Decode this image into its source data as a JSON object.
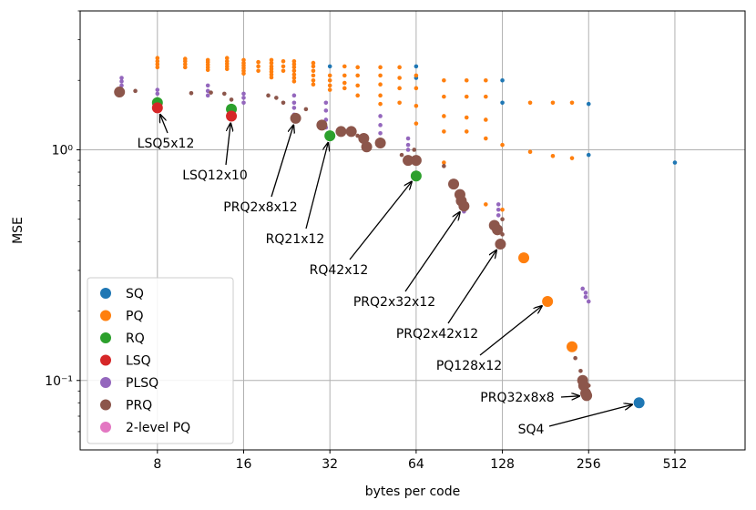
{
  "chart_data": {
    "type": "scatter",
    "title": "",
    "xlabel": "bytes per code",
    "ylabel": "MSE",
    "xscale": "log2",
    "yscale": "log10",
    "xlim": [
      4.3,
      900
    ],
    "ylim": [
      0.05,
      4.0
    ],
    "xticks": [
      8,
      16,
      32,
      64,
      128,
      256,
      512
    ],
    "xtick_labels": [
      "8",
      "16",
      "32",
      "64",
      "128",
      "256",
      "512"
    ],
    "yticks": [
      0.1,
      1.0
    ],
    "ytick_labels": [
      "10⁻¹",
      "10⁰"
    ],
    "grid": true,
    "legend_location": "lower-left",
    "legend": [
      {
        "label": "SQ",
        "color": "#1f77b4"
      },
      {
        "label": "PQ",
        "color": "#ff7f0e"
      },
      {
        "label": "RQ",
        "color": "#2ca02c"
      },
      {
        "label": "LSQ",
        "color": "#d62728"
      },
      {
        "label": "PLSQ",
        "color": "#9467bd"
      },
      {
        "label": "PRQ",
        "color": "#8c564b"
      },
      {
        "label": "2-level PQ",
        "color": "#e377c2"
      }
    ],
    "series": [
      {
        "name": "SQ",
        "color": "#1f77b4",
        "points": [
          [
            32,
            2.3
          ],
          [
            64,
            2.3
          ],
          [
            64,
            2.05
          ],
          [
            128,
            2.0
          ],
          [
            128,
            1.6
          ],
          [
            256,
            1.58
          ],
          [
            256,
            0.95
          ],
          [
            512,
            0.88
          ],
          [
            384,
            0.08
          ]
        ]
      },
      {
        "name": "PQ",
        "color": "#ff7f0e",
        "points": [
          [
            8,
            2.5
          ],
          [
            8,
            2.42
          ],
          [
            8,
            2.35
          ],
          [
            8,
            2.28
          ],
          [
            10,
            2.48
          ],
          [
            10,
            2.42
          ],
          [
            10,
            2.35
          ],
          [
            10,
            2.28
          ],
          [
            12,
            2.45
          ],
          [
            12,
            2.4
          ],
          [
            12,
            2.34
          ],
          [
            12,
            2.28
          ],
          [
            12,
            2.22
          ],
          [
            14,
            2.5
          ],
          [
            14,
            2.42
          ],
          [
            14,
            2.36
          ],
          [
            14,
            2.3
          ],
          [
            14,
            2.24
          ],
          [
            16,
            2.45
          ],
          [
            16,
            2.38
          ],
          [
            16,
            2.32
          ],
          [
            16,
            2.26
          ],
          [
            16,
            2.2
          ],
          [
            16,
            2.14
          ],
          [
            18,
            2.4
          ],
          [
            18,
            2.3
          ],
          [
            18,
            2.2
          ],
          [
            20,
            2.45
          ],
          [
            20,
            2.38
          ],
          [
            20,
            2.3
          ],
          [
            20,
            2.24
          ],
          [
            20,
            2.18
          ],
          [
            20,
            2.12
          ],
          [
            20,
            2.06
          ],
          [
            22,
            2.42
          ],
          [
            22,
            2.3
          ],
          [
            22,
            2.2
          ],
          [
            24,
            2.42
          ],
          [
            24,
            2.35
          ],
          [
            24,
            2.28
          ],
          [
            24,
            2.2
          ],
          [
            24,
            2.12
          ],
          [
            24,
            2.05
          ],
          [
            24,
            1.98
          ],
          [
            28,
            2.38
          ],
          [
            28,
            2.3
          ],
          [
            28,
            2.2
          ],
          [
            28,
            2.1
          ],
          [
            28,
            2.0
          ],
          [
            28,
            1.92
          ],
          [
            32,
            2.1
          ],
          [
            32,
            2.0
          ],
          [
            32,
            1.9
          ],
          [
            32,
            1.82
          ],
          [
            36,
            2.3
          ],
          [
            36,
            2.1
          ],
          [
            36,
            1.95
          ],
          [
            36,
            1.85
          ],
          [
            40,
            2.28
          ],
          [
            40,
            2.1
          ],
          [
            40,
            1.9
          ],
          [
            40,
            1.72
          ],
          [
            48,
            2.28
          ],
          [
            48,
            2.1
          ],
          [
            48,
            1.92
          ],
          [
            48,
            1.72
          ],
          [
            48,
            1.58
          ],
          [
            56,
            2.28
          ],
          [
            56,
            2.05
          ],
          [
            56,
            1.85
          ],
          [
            56,
            1.6
          ],
          [
            64,
            2.1
          ],
          [
            64,
            1.85
          ],
          [
            64,
            1.55
          ],
          [
            64,
            1.3
          ],
          [
            80,
            2.0
          ],
          [
            80,
            1.7
          ],
          [
            80,
            1.4
          ],
          [
            80,
            1.2
          ],
          [
            80,
            0.88
          ],
          [
            96,
            2.0
          ],
          [
            96,
            1.7
          ],
          [
            96,
            1.38
          ],
          [
            96,
            1.2
          ],
          [
            112,
            2.0
          ],
          [
            112,
            1.7
          ],
          [
            112,
            1.35
          ],
          [
            112,
            1.12
          ],
          [
            128,
            1.05
          ],
          [
            160,
            1.6
          ],
          [
            160,
            0.98
          ],
          [
            192,
            1.6
          ],
          [
            192,
            0.94
          ],
          [
            224,
            1.6
          ],
          [
            224,
            0.92
          ],
          [
            112,
            0.58
          ],
          [
            128,
            0.55
          ],
          [
            152,
            0.34
          ],
          [
            184,
            0.22
          ],
          [
            224,
            0.14
          ]
        ]
      },
      {
        "name": "RQ",
        "color": "#2ca02c",
        "points": [
          [
            8,
            1.6
          ],
          [
            14.5,
            1.5
          ],
          [
            32,
            1.15
          ],
          [
            64,
            0.77
          ]
        ]
      },
      {
        "name": "LSQ",
        "color": "#d62728",
        "points": [
          [
            8,
            1.52
          ],
          [
            14.5,
            1.4
          ]
        ]
      },
      {
        "name": "PLSQ",
        "color": "#9467bd",
        "points": [
          [
            6,
            2.05
          ],
          [
            6,
            1.98
          ],
          [
            6,
            1.9
          ],
          [
            8,
            1.82
          ],
          [
            8,
            1.75
          ],
          [
            8,
            1.65
          ],
          [
            12,
            1.9
          ],
          [
            12,
            1.8
          ],
          [
            12,
            1.72
          ],
          [
            16,
            1.75
          ],
          [
            16,
            1.68
          ],
          [
            16,
            1.6
          ],
          [
            24,
            1.72
          ],
          [
            24,
            1.6
          ],
          [
            24,
            1.52
          ],
          [
            24,
            1.42
          ],
          [
            31,
            1.6
          ],
          [
            31,
            1.48
          ],
          [
            31,
            1.35
          ],
          [
            31,
            1.25
          ],
          [
            48,
            1.4
          ],
          [
            48,
            1.28
          ],
          [
            48,
            1.18
          ],
          [
            60,
            1.12
          ],
          [
            60,
            1.05
          ],
          [
            60,
            1.0
          ],
          [
            94,
            0.58
          ],
          [
            94,
            0.56
          ],
          [
            94,
            0.54
          ],
          [
            124,
            0.58
          ],
          [
            124,
            0.55
          ],
          [
            124,
            0.52
          ],
          [
            244,
            0.25
          ],
          [
            250,
            0.24
          ],
          [
            250,
            0.23
          ],
          [
            256,
            0.22
          ]
        ]
      },
      {
        "name": "PRQ",
        "color": "#8c564b",
        "points": [
          [
            5.9,
            1.78
          ],
          [
            6.7,
            1.8
          ],
          [
            10.5,
            1.76
          ],
          [
            12.3,
            1.77
          ],
          [
            13.7,
            1.75
          ],
          [
            14.5,
            1.65
          ],
          [
            19.5,
            1.72
          ],
          [
            20.8,
            1.68
          ],
          [
            22,
            1.6
          ],
          [
            24.3,
            1.37
          ],
          [
            26.4,
            1.5
          ],
          [
            30,
            1.28
          ],
          [
            35,
            1.2
          ],
          [
            38,
            1.2
          ],
          [
            40,
            1.15
          ],
          [
            42,
            1.12
          ],
          [
            43,
            1.03
          ],
          [
            48,
            1.07
          ],
          [
            57,
            0.95
          ],
          [
            60,
            0.9
          ],
          [
            63,
            1.0
          ],
          [
            64,
            0.9
          ],
          [
            80,
            0.85
          ],
          [
            86.5,
            0.71
          ],
          [
            91,
            0.64
          ],
          [
            92,
            0.6
          ],
          [
            94,
            0.57
          ],
          [
            120,
            0.47
          ],
          [
            123,
            0.45
          ],
          [
            126,
            0.39
          ],
          [
            128,
            0.5
          ],
          [
            128,
            0.43
          ],
          [
            230,
            0.125
          ],
          [
            240,
            0.11
          ],
          [
            244,
            0.1
          ],
          [
            246,
            0.095
          ],
          [
            250,
            0.088
          ],
          [
            252,
            0.086
          ],
          [
            256,
            0.095
          ]
        ]
      },
      {
        "name": "2-level PQ",
        "color": "#e377c2",
        "points": []
      }
    ],
    "annotations": [
      {
        "text": "LSQ5x12",
        "x": 8,
        "y": 1.52
      },
      {
        "text": "LSQ12x10",
        "x": 14.5,
        "y": 1.4
      },
      {
        "text": "PRQ2x8x12",
        "x": 24.3,
        "y": 1.37
      },
      {
        "text": "RQ21x12",
        "x": 32,
        "y": 1.15
      },
      {
        "text": "RQ42x12",
        "x": 64,
        "y": 0.77
      },
      {
        "text": "PRQ2x32x12",
        "x": 94,
        "y": 0.57
      },
      {
        "text": "PRQ2x42x12",
        "x": 126,
        "y": 0.39
      },
      {
        "text": "PQ128x12",
        "x": 184,
        "y": 0.22
      },
      {
        "text": "PRQ32x8x8",
        "x": 252,
        "y": 0.086
      },
      {
        "text": "SQ4",
        "x": 384,
        "y": 0.08
      }
    ]
  }
}
